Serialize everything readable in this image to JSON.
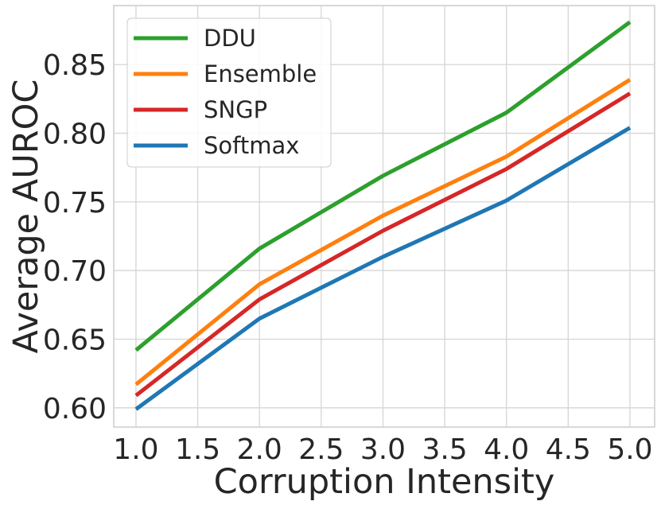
{
  "chart_data": {
    "type": "line",
    "title": "",
    "xlabel": "Corruption Intensity",
    "ylabel": "Average AUROC",
    "x": [
      1.0,
      2.0,
      3.0,
      4.0,
      5.0
    ],
    "xlim": [
      0.82,
      5.2
    ],
    "ylim": [
      0.586,
      0.893
    ],
    "xticks": [
      1.0,
      1.5,
      2.0,
      2.5,
      3.0,
      3.5,
      4.0,
      4.5,
      5.0
    ],
    "xtick_labels": [
      "1.0",
      "1.5",
      "2.0",
      "2.5",
      "3.0",
      "3.5",
      "4.0",
      "4.5",
      "5.0"
    ],
    "yticks": [
      0.6,
      0.65,
      0.7,
      0.75,
      0.8,
      0.85
    ],
    "ytick_labels": [
      "0.60",
      "0.65",
      "0.70",
      "0.75",
      "0.80",
      "0.85"
    ],
    "grid": true,
    "legend_position": "top-left",
    "series": [
      {
        "name": "DDU",
        "color": "#2ca02c",
        "values": [
          0.642,
          0.716,
          0.769,
          0.815,
          0.881
        ]
      },
      {
        "name": "Ensemble",
        "color": "#ff7f0e",
        "values": [
          0.617,
          0.69,
          0.74,
          0.783,
          0.839
        ]
      },
      {
        "name": "SNGP",
        "color": "#d62728",
        "values": [
          0.609,
          0.679,
          0.729,
          0.774,
          0.829
        ]
      },
      {
        "name": "Softmax",
        "color": "#1f77b4",
        "values": [
          0.599,
          0.665,
          0.71,
          0.751,
          0.804
        ]
      }
    ]
  }
}
